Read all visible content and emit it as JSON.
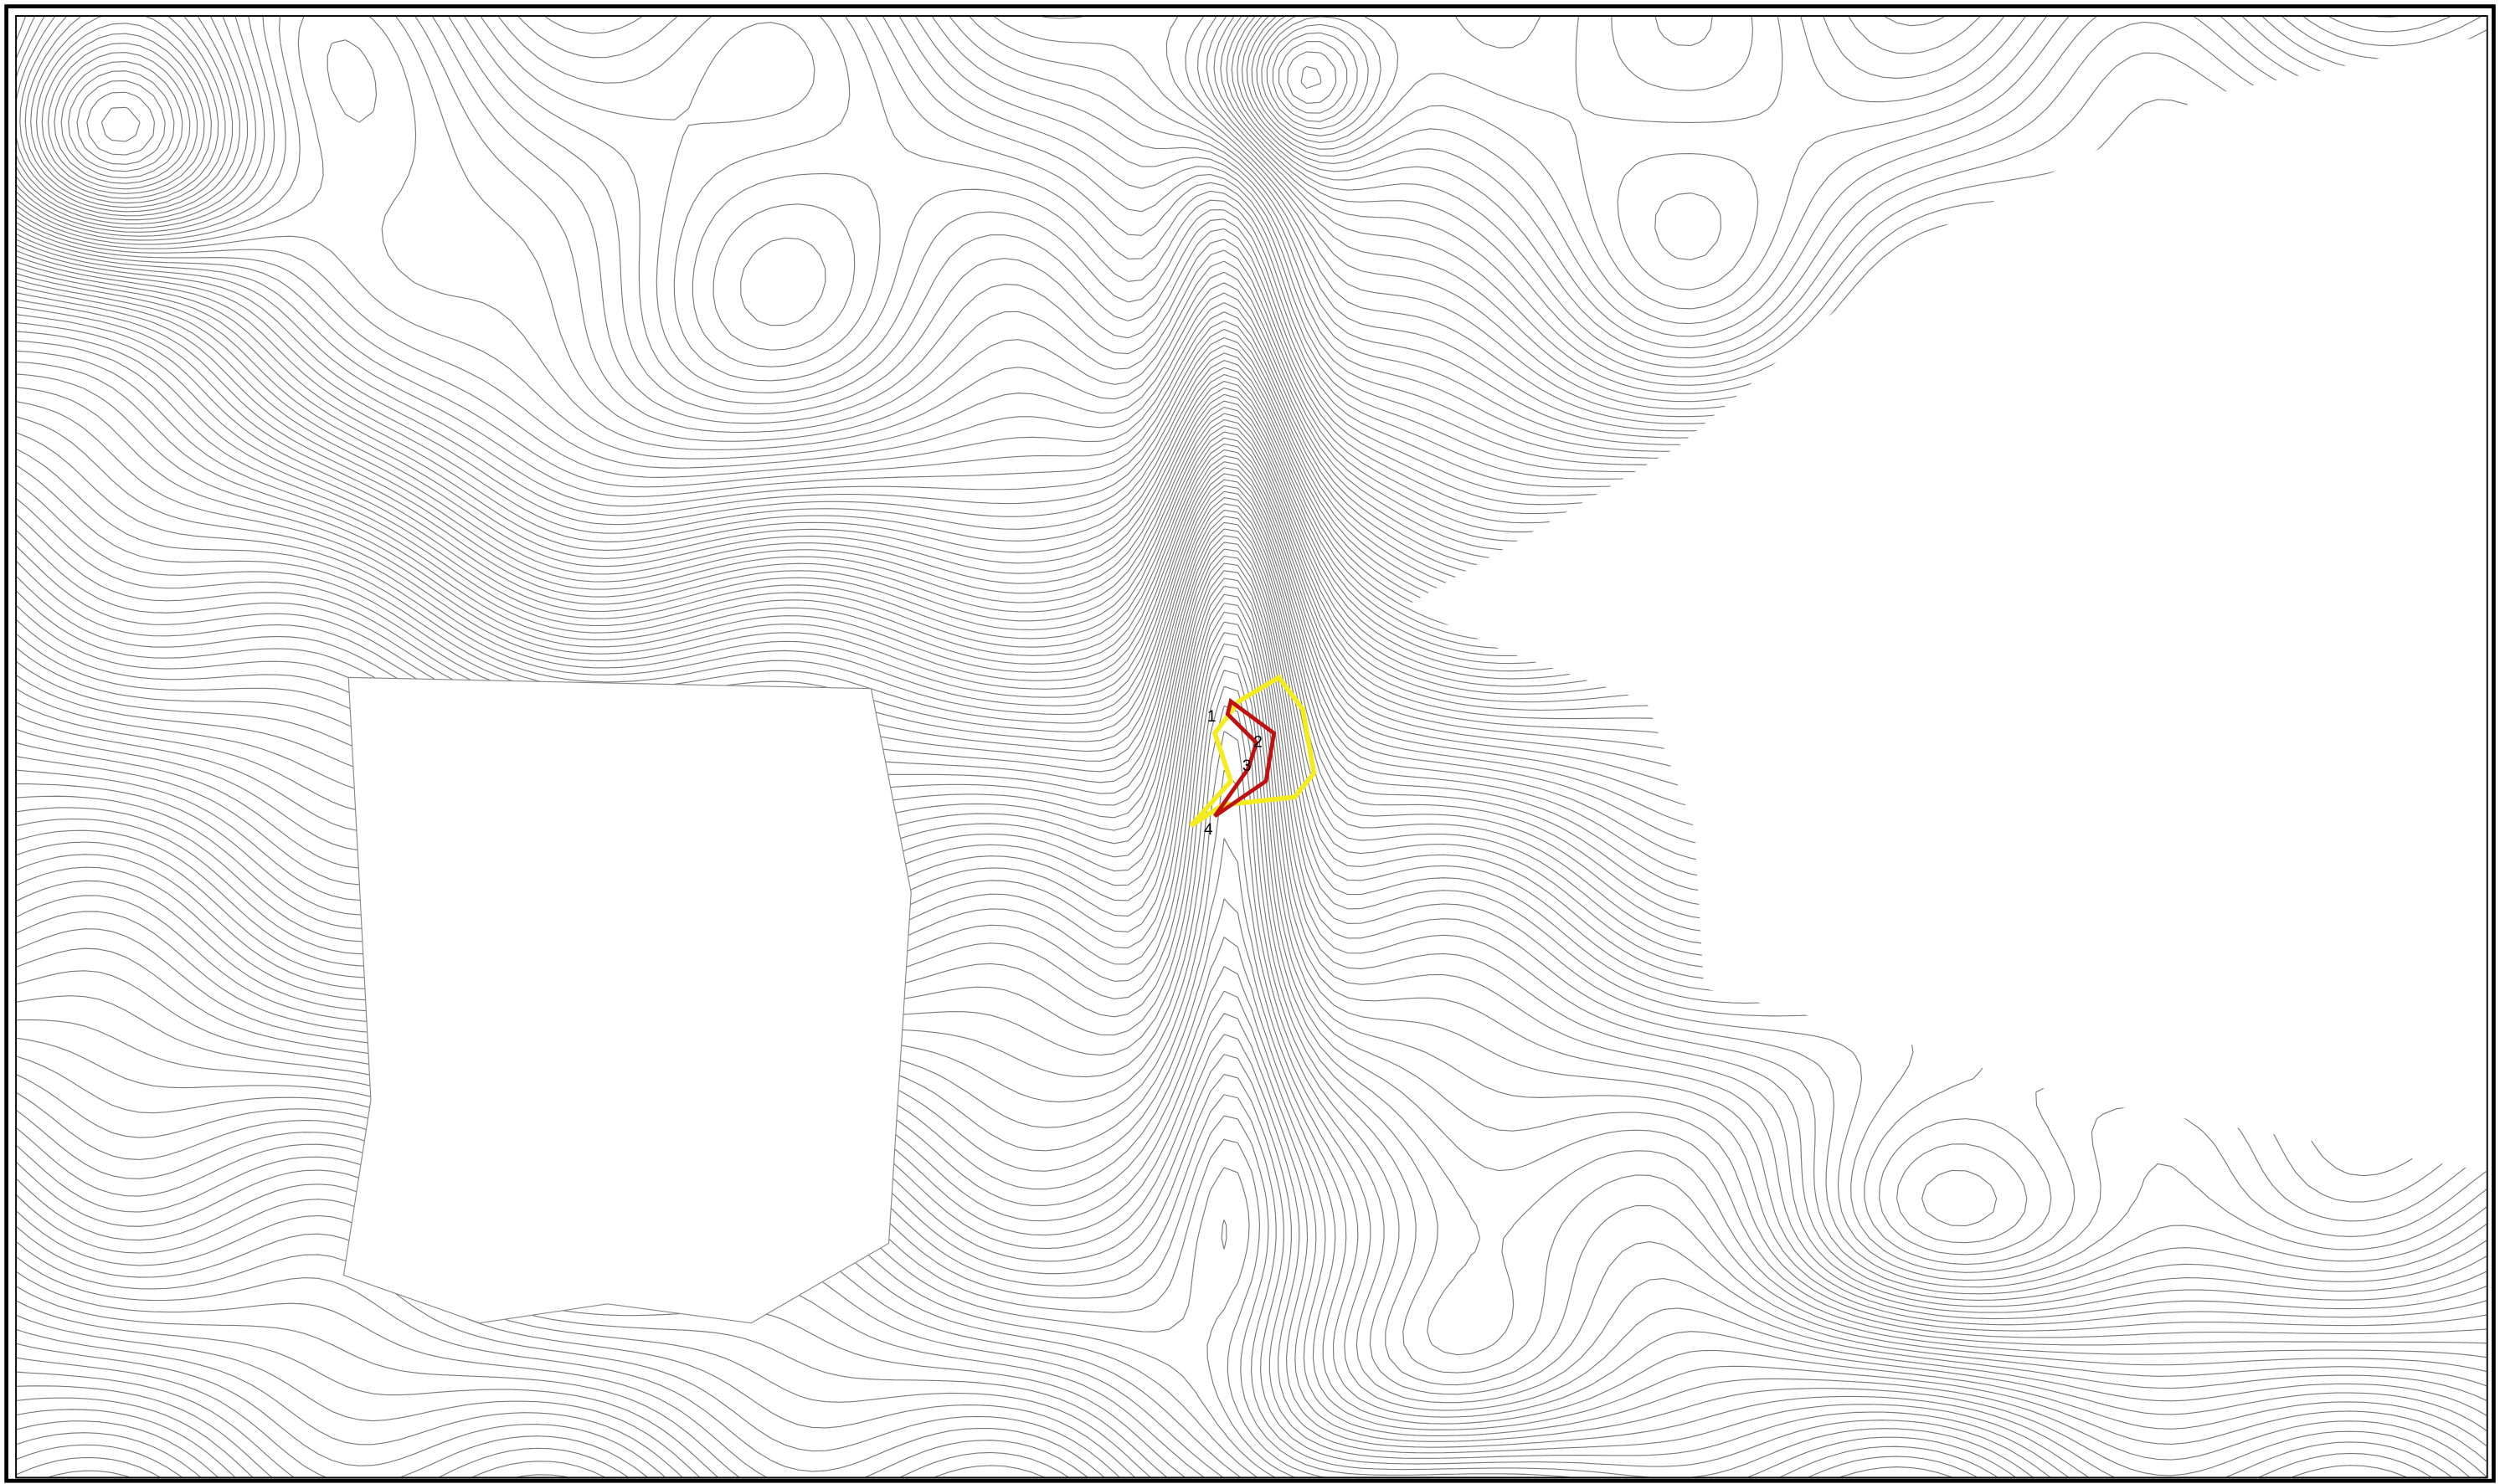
{
  "map": {
    "labels": [
      "1",
      "2",
      "3",
      "4"
    ]
  }
}
